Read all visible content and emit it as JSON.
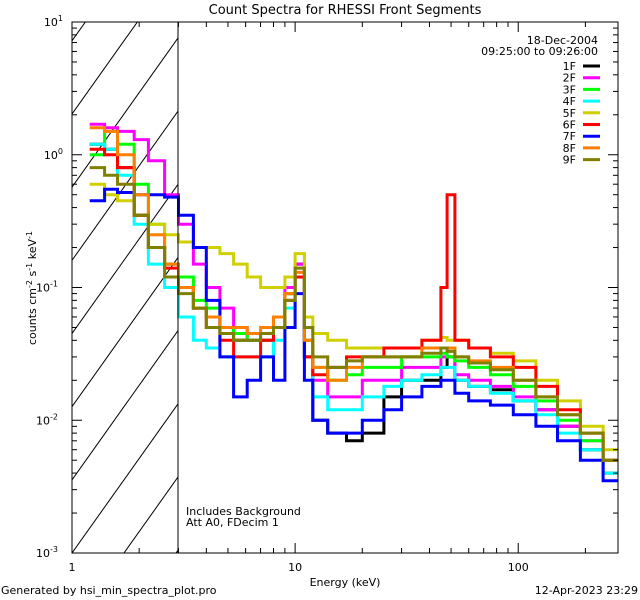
{
  "chart_data": {
    "type": "line",
    "title": "Count Spectra for RHESSI Front Segments",
    "xlabel": "Energy (keV)",
    "ylabel": "counts cm^-2 s^-1 keV^-1",
    "xscale": "log",
    "yscale": "log",
    "xlim": [
      1,
      280
    ],
    "ylim": [
      0.001,
      10
    ],
    "x_ticks": [
      {
        "value": 1,
        "label": "1"
      },
      {
        "value": 10,
        "label": "10"
      },
      {
        "value": 100,
        "label": "100"
      }
    ],
    "y_ticks": [
      {
        "value": 0.001,
        "base": "10",
        "exp": "-3"
      },
      {
        "value": 0.01,
        "base": "10",
        "exp": "-2"
      },
      {
        "value": 0.1,
        "base": "10",
        "exp": "-1"
      },
      {
        "value": 1,
        "base": "10",
        "exp": "0"
      },
      {
        "value": 10,
        "base": "10",
        "exp": "1"
      }
    ],
    "hatched_region": [
      1,
      3
    ],
    "legend_placement": "top-right",
    "legend_header": [
      "18-Dec-2004",
      "09:25:00 to 09:26:00"
    ],
    "annotations": [
      "Includes Background",
      "Att A0, FDecim 1"
    ],
    "energy_bins": [
      1.2,
      1.4,
      1.6,
      1.9,
      2.2,
      2.6,
      3.0,
      3.5,
      4.0,
      4.6,
      5.3,
      6.1,
      7.0,
      8.0,
      9.0,
      10,
      11,
      12,
      14,
      17,
      20,
      25,
      30,
      37,
      45,
      48,
      52,
      60,
      75,
      95,
      120,
      150,
      190,
      240,
      300
    ],
    "series": [
      {
        "name": "1F",
        "color": "#000000",
        "values": [
          1.2,
          1.1,
          0.8,
          0.35,
          0.2,
          0.15,
          0.1,
          0.07,
          0.06,
          0.05,
          0.04,
          0.04,
          0.04,
          0.05,
          0.09,
          0.15,
          0.03,
          0.01,
          0.008,
          0.007,
          0.008,
          0.015,
          0.02,
          0.02,
          0.025,
          0.03,
          0.02,
          0.018,
          0.017,
          0.014,
          0.012,
          0.009,
          0.006,
          0.004,
          0.003
        ]
      },
      {
        "name": "2F",
        "color": "#ff00ff",
        "values": [
          1.7,
          1.6,
          1.5,
          1.3,
          0.9,
          0.5,
          0.3,
          0.15,
          0.1,
          0.07,
          0.05,
          0.04,
          0.045,
          0.06,
          0.1,
          0.15,
          0.04,
          0.02,
          0.015,
          0.015,
          0.02,
          0.02,
          0.025,
          0.025,
          0.03,
          0.03,
          0.022,
          0.02,
          0.018,
          0.015,
          0.012,
          0.009,
          0.007,
          0.005,
          0.003
        ]
      },
      {
        "name": "3F",
        "color": "#00ff00",
        "values": [
          1.0,
          1.5,
          1.2,
          0.6,
          0.3,
          0.15,
          0.12,
          0.08,
          0.07,
          0.05,
          0.045,
          0.04,
          0.04,
          0.05,
          0.09,
          0.12,
          0.04,
          0.025,
          0.02,
          0.022,
          0.025,
          0.025,
          0.03,
          0.03,
          0.032,
          0.03,
          0.028,
          0.025,
          0.022,
          0.018,
          0.014,
          0.01,
          0.007,
          0.005,
          0.003
        ]
      },
      {
        "name": "4F",
        "color": "#00ffff",
        "values": [
          1.2,
          1.1,
          0.7,
          0.3,
          0.15,
          0.1,
          0.06,
          0.04,
          0.035,
          0.03,
          0.03,
          0.03,
          0.03,
          0.04,
          0.07,
          0.12,
          0.03,
          0.015,
          0.012,
          0.012,
          0.015,
          0.018,
          0.02,
          0.022,
          0.025,
          0.025,
          0.02,
          0.018,
          0.016,
          0.014,
          0.011,
          0.008,
          0.006,
          0.004,
          0.003
        ]
      },
      {
        "name": "5F",
        "color": "#d0d000",
        "values": [
          0.6,
          0.5,
          0.45,
          0.35,
          0.3,
          0.25,
          0.22,
          0.2,
          0.2,
          0.18,
          0.15,
          0.12,
          0.1,
          0.1,
          0.12,
          0.18,
          0.06,
          0.045,
          0.04,
          0.035,
          0.035,
          0.035,
          0.035,
          0.04,
          0.042,
          0.04,
          0.04,
          0.035,
          0.032,
          0.028,
          0.02,
          0.014,
          0.009,
          0.006,
          0.004
        ]
      },
      {
        "name": "6F",
        "color": "#ff0000",
        "values": [
          1.1,
          1.0,
          0.8,
          0.35,
          0.2,
          0.14,
          0.1,
          0.07,
          0.05,
          0.04,
          0.03,
          0.03,
          0.04,
          0.05,
          0.08,
          0.12,
          0.03,
          0.022,
          0.025,
          0.03,
          0.03,
          0.035,
          0.035,
          0.04,
          0.1,
          0.5,
          0.04,
          0.035,
          0.03,
          0.025,
          0.018,
          0.012,
          0.008,
          0.005,
          0.003
        ]
      },
      {
        "name": "7F",
        "color": "#0000ff",
        "values": [
          0.45,
          0.55,
          0.52,
          0.5,
          0.5,
          0.48,
          0.35,
          0.2,
          0.08,
          0.03,
          0.015,
          0.02,
          0.03,
          0.02,
          0.05,
          0.09,
          0.02,
          0.01,
          0.008,
          0.008,
          0.01,
          0.012,
          0.015,
          0.018,
          0.02,
          0.02,
          0.016,
          0.014,
          0.013,
          0.011,
          0.009,
          0.007,
          0.005,
          0.0035,
          0.0025
        ]
      },
      {
        "name": "8F",
        "color": "#ff8000",
        "values": [
          1.6,
          1.5,
          1.0,
          0.5,
          0.25,
          0.15,
          0.1,
          0.07,
          0.06,
          0.05,
          0.05,
          0.045,
          0.05,
          0.06,
          0.09,
          0.13,
          0.04,
          0.025,
          0.02,
          0.025,
          0.03,
          0.03,
          0.03,
          0.035,
          0.035,
          0.035,
          0.03,
          0.028,
          0.025,
          0.02,
          0.015,
          0.011,
          0.008,
          0.005,
          0.003
        ]
      },
      {
        "name": "9F",
        "color": "#808000",
        "values": [
          0.8,
          0.7,
          0.6,
          0.35,
          0.2,
          0.12,
          0.09,
          0.07,
          0.05,
          0.045,
          0.04,
          0.04,
          0.045,
          0.05,
          0.08,
          0.14,
          0.05,
          0.03,
          0.025,
          0.028,
          0.03,
          0.03,
          0.03,
          0.032,
          0.035,
          0.033,
          0.03,
          0.027,
          0.024,
          0.02,
          0.015,
          0.011,
          0.008,
          0.005,
          0.003
        ]
      }
    ]
  },
  "footer": {
    "generated_by": "Generated by hsi_min_spectra_plot.pro",
    "timestamp": "12-Apr-2023 23:29"
  }
}
